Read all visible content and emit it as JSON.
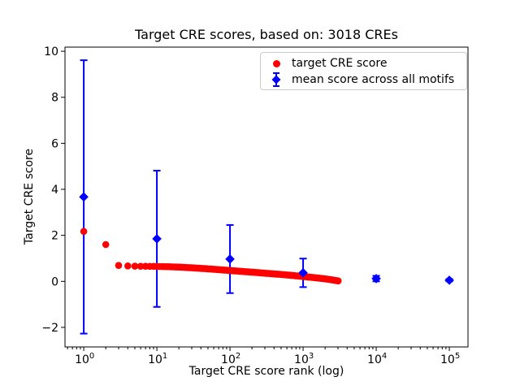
{
  "title": "Target CRE scores, based on: 3018 CREs",
  "axes": {
    "xlabel": "Target CRE score rank (log)",
    "ylabel": "Target CRE score"
  },
  "legend": {
    "position": "upper right",
    "items": [
      {
        "label": "target CRE score",
        "marker": "circle",
        "color": "#ff0000"
      },
      {
        "label": "mean score across all motifs",
        "marker": "diamond-errorbar",
        "color": "#0000ff"
      }
    ]
  },
  "colors": {
    "red_series": "#ff0000",
    "blue_series": "#0000ff",
    "spine": "#000000",
    "legend_border": "#cccccc",
    "background": "#ffffff"
  },
  "chart_data": {
    "type": "scatter",
    "title": "Target CRE scores, based on: 3018 CREs",
    "xlabel": "Target CRE score rank (log)",
    "ylabel": "Target CRE score",
    "x_scale": "log",
    "grid": false,
    "legend_position": "upper right",
    "x_tick_exponents": [
      0,
      1,
      2,
      3,
      4,
      5
    ],
    "y_ticks": [
      -2,
      0,
      2,
      4,
      6,
      8,
      10
    ],
    "xlim_log10": [
      -0.2565,
      5.2553
    ],
    "ylim": [
      -2.85,
      10.18
    ],
    "series": [
      {
        "name": "target CRE score",
        "marker": "circle",
        "color": "#ff0000",
        "n_points": 3018,
        "rank_range": [
          1,
          3018
        ],
        "anchors_rank_score": [
          [
            1,
            2.17
          ],
          [
            2,
            1.6
          ],
          [
            3,
            0.69
          ],
          [
            4,
            0.67
          ],
          [
            5,
            0.66
          ],
          [
            7,
            0.655
          ],
          [
            10,
            0.65
          ],
          [
            15,
            0.635
          ],
          [
            20,
            0.62
          ],
          [
            30,
            0.59
          ],
          [
            50,
            0.545
          ],
          [
            70,
            0.51
          ],
          [
            100,
            0.47
          ],
          [
            150,
            0.43
          ],
          [
            200,
            0.4
          ],
          [
            300,
            0.355
          ],
          [
            500,
            0.3
          ],
          [
            700,
            0.26
          ],
          [
            1000,
            0.21
          ],
          [
            1500,
            0.155
          ],
          [
            2000,
            0.11
          ],
          [
            2500,
            0.065
          ],
          [
            3018,
            0.02
          ]
        ]
      },
      {
        "name": "mean score across all motifs",
        "marker": "diamond",
        "color": "#0000ff",
        "points": [
          {
            "rank": 1,
            "mean": 3.67,
            "err": 5.94
          },
          {
            "rank": 10,
            "mean": 1.85,
            "err": 2.96
          },
          {
            "rank": 100,
            "mean": 0.97,
            "err": 1.48
          },
          {
            "rank": 1000,
            "mean": 0.37,
            "err": 0.62
          },
          {
            "rank": 10000,
            "mean": 0.12,
            "err": 0.12
          },
          {
            "rank": 100000,
            "mean": 0.05,
            "err": 0.05
          }
        ]
      }
    ]
  }
}
